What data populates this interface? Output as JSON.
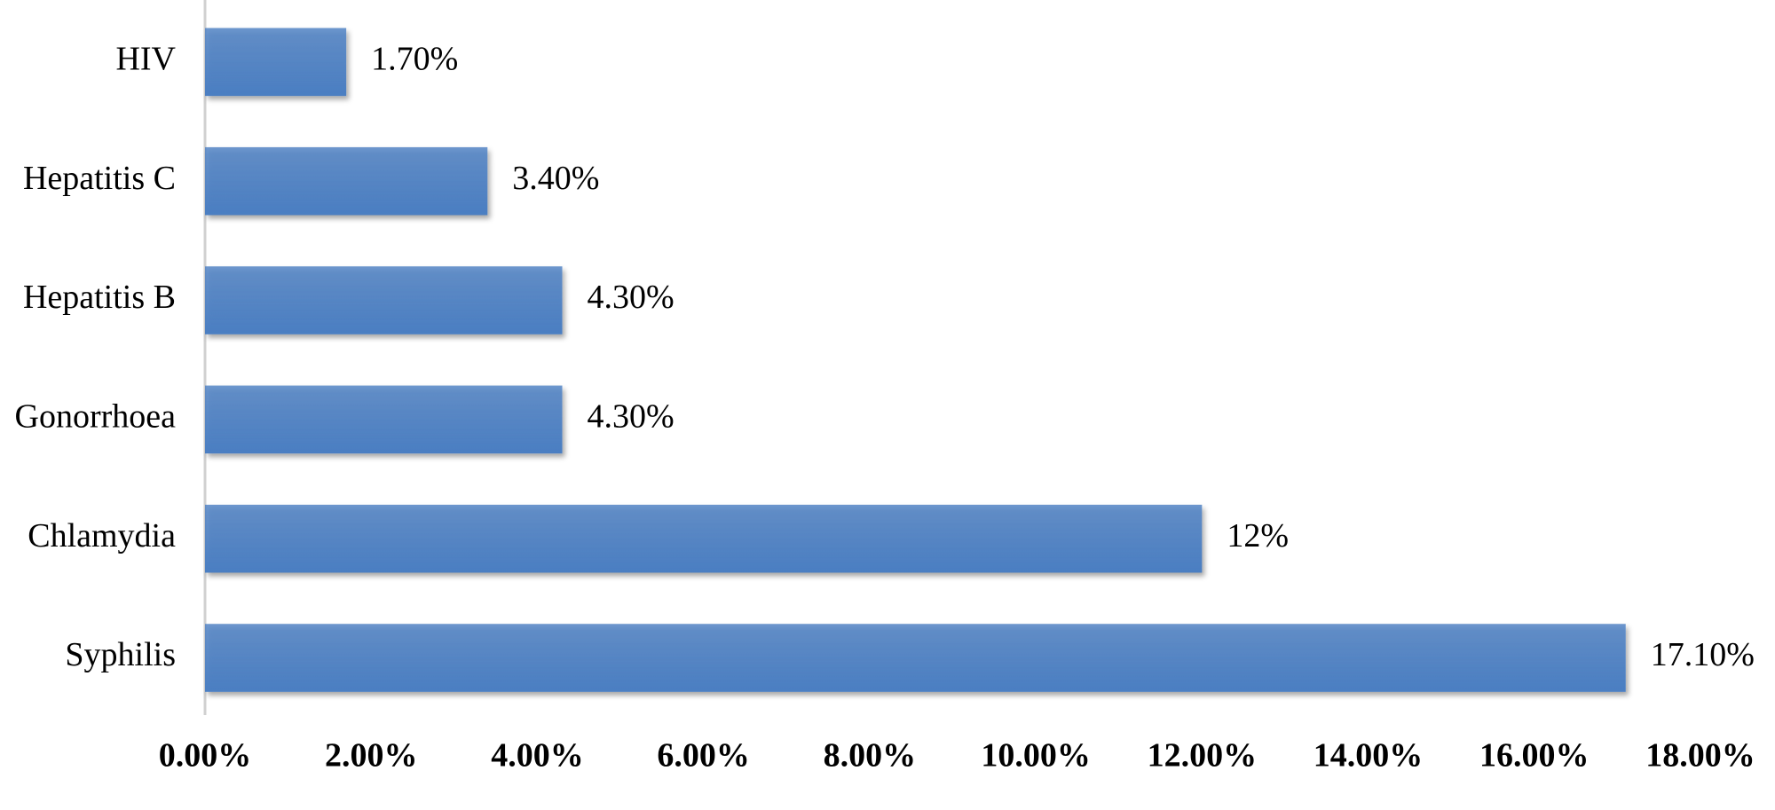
{
  "chart_data": {
    "type": "bar",
    "orientation": "horizontal",
    "categories": [
      "HIV",
      "Hepatitis C",
      "Hepatitis B",
      "Gonorrhoea",
      "Chlamydia",
      "Syphilis"
    ],
    "values": [
      1.7,
      3.4,
      4.3,
      4.3,
      12,
      17.1
    ],
    "value_labels": [
      "1.70%",
      "3.40%",
      "4.30%",
      "4.30%",
      "12%",
      "17.10%"
    ],
    "color": "#4a7ec2",
    "xlim": [
      0,
      18
    ],
    "xticks": [
      {
        "value": 0,
        "label": "0.00%"
      },
      {
        "value": 2,
        "label": "2.00%"
      },
      {
        "value": 4,
        "label": "4.00%"
      },
      {
        "value": 6,
        "label": "6.00%"
      },
      {
        "value": 8,
        "label": "8.00%"
      },
      {
        "value": 10,
        "label": "10.00%"
      },
      {
        "value": 12,
        "label": "12.00%"
      },
      {
        "value": 14,
        "label": "14.00%"
      },
      {
        "value": 16,
        "label": "16.00%"
      },
      {
        "value": 18,
        "label": "18.00%"
      }
    ],
    "grid": false
  }
}
